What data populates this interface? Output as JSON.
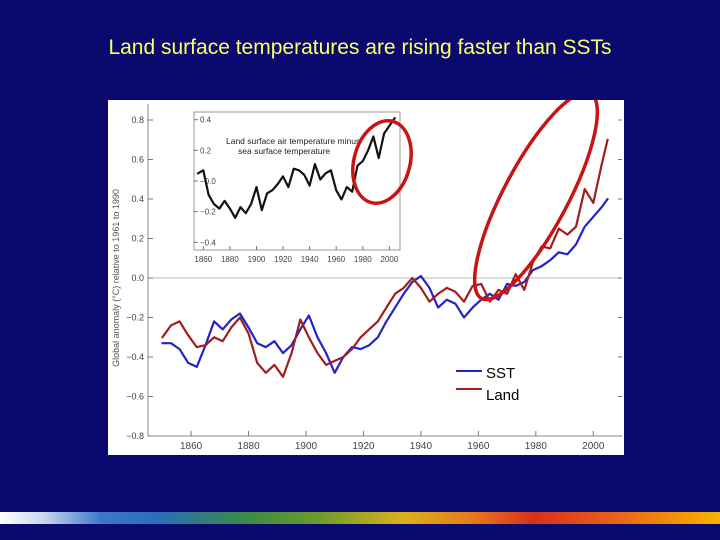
{
  "slide": {
    "title": "Land surface temperatures are rising faster than SSTs"
  },
  "colors": {
    "background": "#0a0a6e",
    "title": "#ffff66",
    "sst": "#2323c8",
    "land": "#a01e1e",
    "inset_line": "#111111",
    "highlight_ellipse": "#c81414"
  },
  "chart_data": [
    {
      "type": "line",
      "title": "",
      "xlabel": "",
      "ylabel": "Global anomaly (°C) relative to 1961 to 1990",
      "xlim": [
        1845,
        2010
      ],
      "ylim": [
        -0.8,
        0.8
      ],
      "x_ticks": [
        1860,
        1880,
        1900,
        1920,
        1940,
        1960,
        1980,
        2000
      ],
      "y_ticks": [
        -0.8,
        -0.6,
        -0.4,
        -0.2,
        0.0,
        0.2,
        0.4,
        0.6,
        0.8
      ],
      "x_tick_labels": [
        "1860",
        "1880",
        "1900",
        "1920",
        "1940",
        "1960",
        "1980",
        "2000"
      ],
      "y_tick_labels": [
        "−0.8",
        "−0.6",
        "−0.4",
        "−0.2",
        "0.0",
        "0.2",
        "0.4",
        "0.6",
        "0.8"
      ],
      "legend": {
        "placement": "bottom-right"
      },
      "series": [
        {
          "name": "SST",
          "color": "#2323c8",
          "x": [
            1850,
            1853,
            1856,
            1859,
            1862,
            1865,
            1868,
            1871,
            1874,
            1877,
            1880,
            1883,
            1886,
            1889,
            1892,
            1895,
            1898,
            1901,
            1904,
            1907,
            1910,
            1913,
            1916,
            1919,
            1922,
            1925,
            1928,
            1931,
            1934,
            1937,
            1940,
            1943,
            1946,
            1949,
            1952,
            1955,
            1958,
            1961,
            1964,
            1967,
            1970,
            1973,
            1976,
            1979,
            1982,
            1985,
            1988,
            1991,
            1994,
            1997,
            2000,
            2003,
            2005
          ],
          "y": [
            -0.33,
            -0.33,
            -0.36,
            -0.43,
            -0.45,
            -0.34,
            -0.22,
            -0.26,
            -0.21,
            -0.18,
            -0.25,
            -0.33,
            -0.35,
            -0.32,
            -0.38,
            -0.34,
            -0.26,
            -0.19,
            -0.3,
            -0.38,
            -0.48,
            -0.4,
            -0.35,
            -0.36,
            -0.34,
            -0.3,
            -0.22,
            -0.15,
            -0.08,
            -0.02,
            0.01,
            -0.05,
            -0.15,
            -0.11,
            -0.13,
            -0.2,
            -0.15,
            -0.11,
            -0.08,
            -0.11,
            -0.03,
            -0.04,
            -0.02,
            0.04,
            0.06,
            0.09,
            0.13,
            0.12,
            0.17,
            0.26,
            0.31,
            0.36,
            0.4
          ]
        },
        {
          "name": "Land",
          "color": "#a01e1e",
          "x": [
            1850,
            1853,
            1856,
            1859,
            1862,
            1865,
            1868,
            1871,
            1874,
            1877,
            1880,
            1883,
            1886,
            1889,
            1892,
            1895,
            1898,
            1901,
            1904,
            1907,
            1910,
            1913,
            1916,
            1919,
            1922,
            1925,
            1928,
            1931,
            1934,
            1937,
            1940,
            1943,
            1946,
            1949,
            1952,
            1955,
            1958,
            1961,
            1964,
            1967,
            1970,
            1973,
            1976,
            1979,
            1982,
            1985,
            1988,
            1991,
            1994,
            1997,
            2000,
            2003,
            2005
          ],
          "y": [
            -0.3,
            -0.24,
            -0.22,
            -0.29,
            -0.35,
            -0.34,
            -0.3,
            -0.32,
            -0.25,
            -0.2,
            -0.28,
            -0.43,
            -0.48,
            -0.44,
            -0.5,
            -0.38,
            -0.21,
            -0.3,
            -0.38,
            -0.44,
            -0.42,
            -0.4,
            -0.36,
            -0.3,
            -0.26,
            -0.22,
            -0.15,
            -0.08,
            -0.05,
            0.0,
            -0.05,
            -0.12,
            -0.08,
            -0.05,
            -0.07,
            -0.12,
            -0.04,
            -0.03,
            -0.12,
            -0.06,
            -0.08,
            0.02,
            -0.06,
            0.08,
            0.16,
            0.15,
            0.25,
            0.22,
            0.26,
            0.45,
            0.38,
            0.58,
            0.7
          ]
        }
      ],
      "annotations": []
    },
    {
      "type": "line",
      "title": "Land surface air temperature minus sea surface temperature",
      "xlabel": "",
      "ylabel": "",
      "xlim": [
        1853,
        2008
      ],
      "ylim": [
        -0.45,
        0.45
      ],
      "x_ticks": [
        1860,
        1880,
        1900,
        1920,
        1940,
        1960,
        1980,
        2000
      ],
      "y_ticks": [
        -0.4,
        -0.2,
        0.0,
        0.2,
        0.4
      ],
      "x_tick_labels": [
        "1860",
        "1880",
        "1900",
        "1920",
        "1940",
        "1960",
        "1980",
        "2000"
      ],
      "y_tick_labels": [
        "−0.4",
        "−0.2",
        "−0.0",
        "0.2",
        "0.4"
      ],
      "series": [
        {
          "name": "",
          "color": "#111111",
          "x": [
            1856,
            1860,
            1864,
            1868,
            1872,
            1876,
            1880,
            1884,
            1888,
            1892,
            1896,
            1900,
            1904,
            1908,
            1912,
            1916,
            1920,
            1924,
            1928,
            1932,
            1936,
            1940,
            1944,
            1948,
            1952,
            1956,
            1960,
            1964,
            1968,
            1972,
            1976,
            1980,
            1984,
            1988,
            1992,
            1996,
            2000,
            2004
          ],
          "y": [
            0.05,
            0.07,
            -0.09,
            -0.15,
            -0.18,
            -0.13,
            -0.18,
            -0.24,
            -0.17,
            -0.21,
            -0.15,
            -0.04,
            -0.19,
            -0.08,
            -0.06,
            -0.02,
            0.03,
            -0.04,
            0.08,
            0.07,
            0.04,
            -0.03,
            0.11,
            0.01,
            0.05,
            0.07,
            -0.06,
            -0.12,
            -0.04,
            -0.07,
            0.1,
            0.13,
            0.2,
            0.29,
            0.15,
            0.31,
            0.36,
            0.41
          ]
        }
      ]
    }
  ],
  "legend": {
    "sst_label": "SST",
    "land_label": "Land"
  }
}
